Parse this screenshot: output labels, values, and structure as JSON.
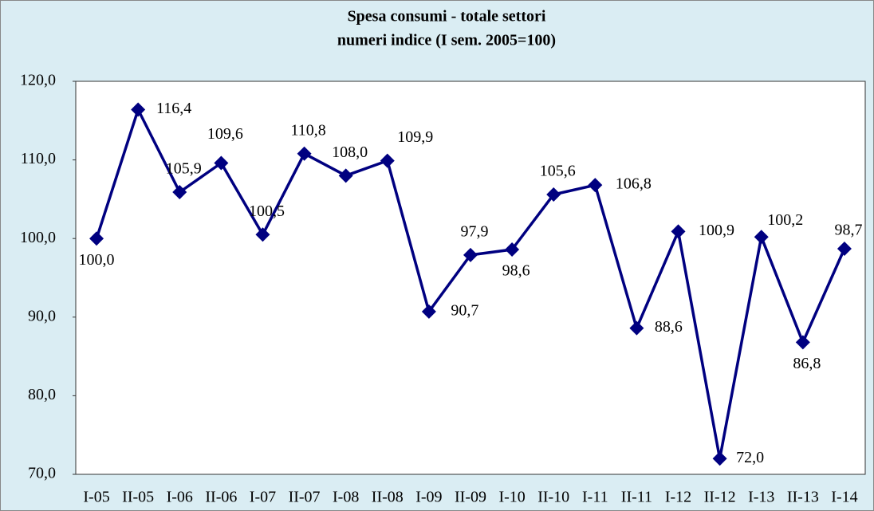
{
  "chart_data": {
    "type": "line",
    "title": "Spesa consumi - totale settori",
    "subtitle": "numeri indice (I sem. 2005=100)",
    "categories": [
      "I-05",
      "II-05",
      "I-06",
      "II-06",
      "I-07",
      "II-07",
      "I-08",
      "II-08",
      "I-09",
      "II-09",
      "I-10",
      "II-10",
      "I-11",
      "II-11",
      "I-12",
      "II-12",
      "I-13",
      "II-13",
      "I-14"
    ],
    "series": [
      {
        "color": "#000080",
        "values": [
          100.0,
          116.4,
          105.9,
          109.6,
          100.5,
          110.8,
          108.0,
          109.9,
          90.7,
          97.9,
          98.6,
          105.6,
          106.8,
          88.6,
          100.9,
          72.0,
          100.2,
          86.8,
          98.7
        ],
        "value_labels": [
          "100,0",
          "116,4",
          "105,9",
          "109,6",
          "100,5",
          "110,8",
          "108,0",
          "109,9",
          "90,7",
          "97,9",
          "98,6",
          "105,6",
          "106,8",
          "88,6",
          "100,9",
          "72,0",
          "100,2",
          "86,8",
          "98,7"
        ]
      }
    ],
    "ylim": [
      70,
      120
    ],
    "yticks": [
      {
        "value": 70,
        "label": "70,0"
      },
      {
        "value": 80,
        "label": "80,0"
      },
      {
        "value": 90,
        "label": "90,0"
      },
      {
        "value": 100,
        "label": "100,0"
      },
      {
        "value": 110,
        "label": "110,0"
      },
      {
        "value": 120,
        "label": "120,0"
      }
    ],
    "grid": false
  }
}
